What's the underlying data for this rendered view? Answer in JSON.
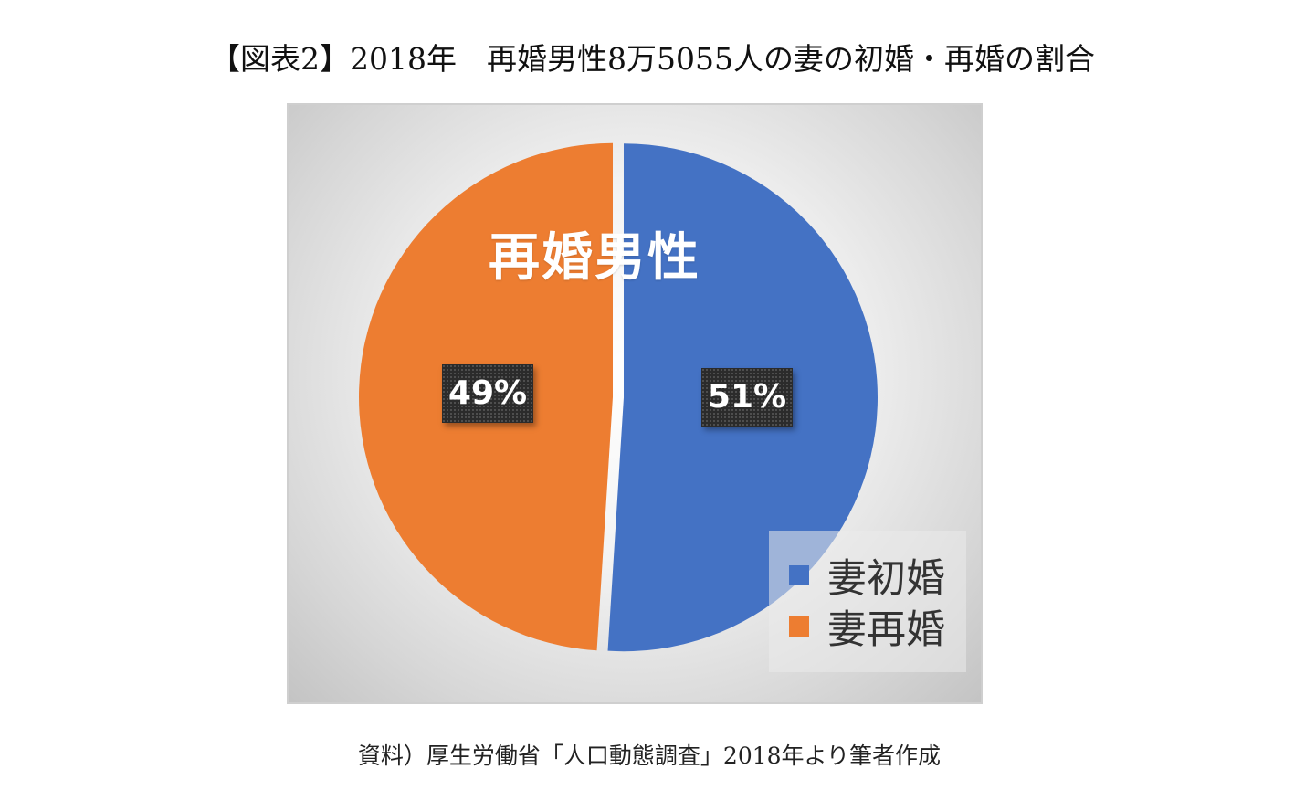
{
  "figure_title": "【図表2】2018年　再婚男性8万5055人の妻の初婚・再婚の割合",
  "source_note": "資料）厚生労働省「人口動態調査」2018年より筆者作成",
  "chart_data": {
    "type": "pie",
    "title": "再婚男性",
    "categories": [
      "妻初婚",
      "妻再婚"
    ],
    "values": [
      51,
      49
    ],
    "data_labels": [
      "51%",
      "49%"
    ],
    "colors": [
      "#4472c4",
      "#ed7d31"
    ],
    "legend_position": "bottom-right",
    "legend": [
      {
        "label": "妻初婚",
        "color": "#4472c4"
      },
      {
        "label": "妻再婚",
        "color": "#ed7d31"
      }
    ]
  }
}
